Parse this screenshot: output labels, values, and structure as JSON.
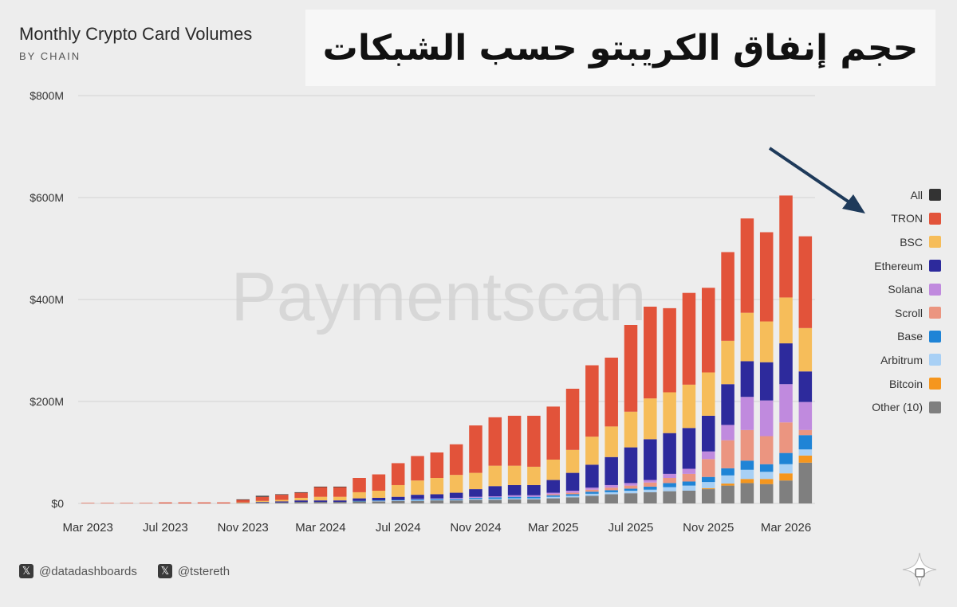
{
  "header": {
    "title": "Monthly Crypto Card Volumes",
    "subtitle": "BY CHAIN",
    "arabic_title": "حجم إنفاق الكريبتو حسب الشبكات"
  },
  "watermark": "Paymentscan",
  "footer": {
    "handles": [
      "@datadashboards",
      "@tstereth"
    ],
    "x_icon": "x-logo-icon"
  },
  "chart_data": {
    "type": "bar",
    "stacked": true,
    "title": "Monthly Crypto Card Volumes",
    "subtitle": "BY CHAIN",
    "ylim": [
      0,
      800
    ],
    "y_ticks": [
      0,
      200,
      400,
      600,
      800
    ],
    "y_tick_labels": [
      "$0",
      "$200M",
      "$400M",
      "$600M",
      "$800M"
    ],
    "x_tick_labels": [
      "Mar 2023",
      "Jul 2023",
      "Nov 2023",
      "Mar 2024",
      "Jul 2024",
      "Nov 2024",
      "Mar 2025",
      "Jul 2025",
      "Nov 2025",
      "Mar 2026"
    ],
    "grid": true,
    "legend_position": "right",
    "categories": [
      "2023-03",
      "2023-04",
      "2023-05",
      "2023-06",
      "2023-07",
      "2023-08",
      "2023-09",
      "2023-10",
      "2023-11",
      "2023-12",
      "2024-01",
      "2024-02",
      "2024-03",
      "2024-04",
      "2024-05",
      "2024-06",
      "2024-07",
      "2024-08",
      "2024-09",
      "2024-10",
      "2024-11",
      "2024-12",
      "2025-01",
      "2025-02",
      "2025-03",
      "2025-04",
      "2025-05",
      "2025-06",
      "2025-07",
      "2025-08",
      "2025-09",
      "2025-10",
      "2025-11",
      "2025-12",
      "2026-01",
      "2026-02",
      "2026-03",
      "2026-04"
    ],
    "series": [
      {
        "name": "Other (10)",
        "color": "#7f7f7f",
        "values": [
          0,
          0,
          0,
          0,
          0,
          0,
          0,
          0,
          1,
          2,
          2,
          3,
          3,
          3,
          4,
          4,
          5,
          5,
          6,
          6,
          7,
          7,
          8,
          8,
          10,
          12,
          15,
          18,
          20,
          22,
          24,
          25,
          28,
          35,
          40,
          38,
          45,
          80
        ]
      },
      {
        "name": "Bitcoin",
        "color": "#f5961e",
        "values": [
          0,
          0,
          0,
          0,
          0,
          0,
          0,
          0,
          0,
          0,
          0,
          0,
          0,
          0,
          0,
          0,
          0,
          0,
          0,
          0,
          0,
          0,
          0,
          0,
          0,
          0,
          0,
          0,
          0,
          0,
          0,
          0,
          2,
          4,
          8,
          10,
          14,
          14
        ]
      },
      {
        "name": "Arbitrum",
        "color": "#a8d0f5",
        "values": [
          0,
          0,
          0,
          0,
          0,
          0,
          0,
          0,
          0,
          0,
          0,
          0,
          0,
          0,
          0,
          1,
          1,
          1,
          1,
          1,
          2,
          2,
          2,
          2,
          3,
          3,
          4,
          4,
          5,
          5,
          8,
          10,
          12,
          16,
          18,
          14,
          18,
          12
        ]
      },
      {
        "name": "Base",
        "color": "#1f84d6",
        "values": [
          0,
          0,
          0,
          0,
          0,
          0,
          0,
          0,
          0,
          0,
          0,
          0,
          0,
          0,
          1,
          1,
          1,
          2,
          2,
          2,
          2,
          3,
          3,
          3,
          3,
          3,
          4,
          4,
          4,
          6,
          8,
          8,
          10,
          14,
          18,
          15,
          22,
          28
        ]
      },
      {
        "name": "Scroll",
        "color": "#eb9580",
        "values": [
          0,
          0,
          0,
          0,
          0,
          0,
          0,
          0,
          0,
          0,
          0,
          0,
          0,
          0,
          0,
          0,
          0,
          0,
          0,
          0,
          0,
          0,
          0,
          0,
          2,
          3,
          4,
          5,
          6,
          8,
          10,
          15,
          35,
          55,
          60,
          55,
          60,
          10
        ]
      },
      {
        "name": "Solana",
        "color": "#c08ade",
        "values": [
          0,
          0,
          0,
          0,
          0,
          0,
          0,
          0,
          0,
          0,
          0,
          0,
          0,
          0,
          0,
          0,
          0,
          1,
          1,
          2,
          2,
          2,
          3,
          3,
          3,
          4,
          4,
          5,
          5,
          5,
          8,
          10,
          15,
          30,
          65,
          70,
          75,
          55
        ]
      },
      {
        "name": "Ethereum",
        "color": "#2d2a9c",
        "values": [
          0,
          0,
          0,
          0,
          0,
          0,
          0,
          0,
          0,
          1,
          2,
          3,
          3,
          3,
          5,
          5,
          6,
          8,
          8,
          10,
          15,
          20,
          20,
          20,
          25,
          35,
          45,
          55,
          70,
          80,
          80,
          80,
          70,
          80,
          70,
          75,
          80,
          60
        ]
      },
      {
        "name": "BSC",
        "color": "#f6bd5a",
        "values": [
          0,
          0,
          0,
          0,
          0,
          0,
          0,
          0,
          1,
          2,
          3,
          5,
          7,
          7,
          12,
          14,
          23,
          28,
          32,
          35,
          32,
          40,
          38,
          36,
          40,
          45,
          55,
          60,
          70,
          80,
          80,
          85,
          85,
          85,
          95,
          80,
          90,
          85
        ]
      },
      {
        "name": "TRON",
        "color": "#e2533a",
        "values": [
          1,
          1,
          1,
          1,
          2,
          2,
          2,
          2,
          5,
          8,
          10,
          10,
          19,
          19,
          28,
          32,
          43,
          48,
          50,
          60,
          93,
          95,
          98,
          100,
          104,
          120,
          140,
          135,
          170,
          180,
          165,
          180,
          166,
          174,
          185,
          175,
          200,
          180
        ]
      },
      {
        "name": "All",
        "color": "#333333",
        "values": [
          0,
          0,
          0,
          0,
          0,
          0,
          0,
          0,
          1,
          2,
          1,
          1,
          1,
          1,
          0,
          0,
          0,
          0,
          0,
          0,
          0,
          0,
          0,
          0,
          0,
          0,
          0,
          0,
          0,
          0,
          0,
          0,
          0,
          0,
          0,
          0,
          0,
          0
        ]
      }
    ]
  }
}
